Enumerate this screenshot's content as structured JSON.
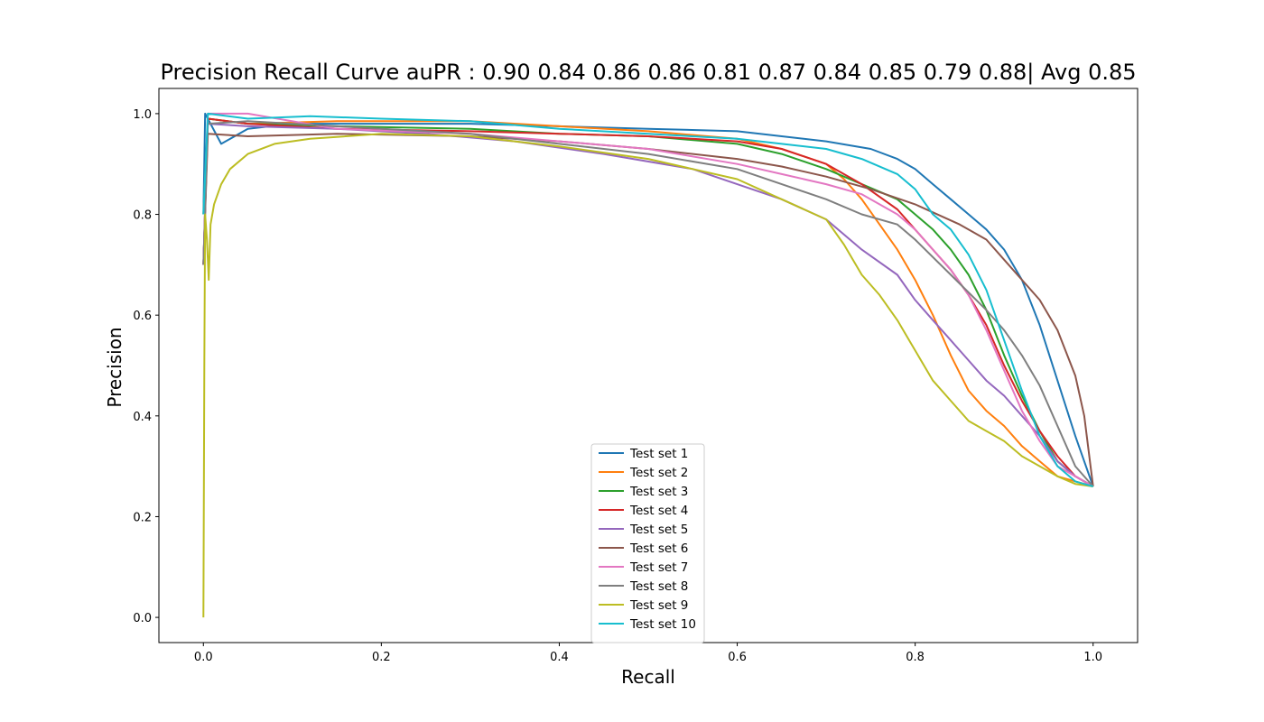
{
  "chart_data": {
    "type": "line",
    "title": "Precision Recall Curve auPR :  0.90 0.84 0.86 0.86 0.81 0.87 0.84 0.85 0.79 0.88| Avg 0.85",
    "xlabel": "Recall",
    "ylabel": "Precision",
    "xlim": [
      -0.05,
      1.05
    ],
    "ylim": [
      -0.05,
      1.05
    ],
    "xticks": [
      "0.0",
      "0.2",
      "0.4",
      "0.6",
      "0.8",
      "1.0"
    ],
    "yticks": [
      "0.0",
      "0.2",
      "0.4",
      "0.6",
      "0.8",
      "1.0"
    ],
    "grid": false,
    "legend_position": "lower center",
    "series": [
      {
        "name": "Test set 1",
        "color": "#1f77b4",
        "x": [
          0,
          0.002,
          0.02,
          0.05,
          0.1,
          0.2,
          0.3,
          0.4,
          0.5,
          0.6,
          0.65,
          0.7,
          0.75,
          0.78,
          0.8,
          0.82,
          0.84,
          0.86,
          0.88,
          0.9,
          0.92,
          0.94,
          0.96,
          0.98,
          1.0
        ],
        "y": [
          0.8,
          1.0,
          0.94,
          0.97,
          0.98,
          0.98,
          0.98,
          0.975,
          0.97,
          0.965,
          0.955,
          0.945,
          0.93,
          0.91,
          0.89,
          0.86,
          0.83,
          0.8,
          0.77,
          0.73,
          0.67,
          0.58,
          0.47,
          0.36,
          0.26
        ]
      },
      {
        "name": "Test set 2",
        "color": "#ff7f0e",
        "x": [
          0,
          0.005,
          0.05,
          0.15,
          0.3,
          0.4,
          0.5,
          0.6,
          0.65,
          0.7,
          0.72,
          0.74,
          0.76,
          0.78,
          0.8,
          0.82,
          0.84,
          0.86,
          0.88,
          0.9,
          0.92,
          0.94,
          0.96,
          0.98,
          1.0
        ],
        "y": [
          0.8,
          0.99,
          0.98,
          0.985,
          0.985,
          0.975,
          0.965,
          0.95,
          0.93,
          0.9,
          0.87,
          0.83,
          0.78,
          0.73,
          0.67,
          0.6,
          0.52,
          0.45,
          0.41,
          0.38,
          0.34,
          0.31,
          0.28,
          0.27,
          0.26
        ]
      },
      {
        "name": "Test set 3",
        "color": "#2ca02c",
        "x": [
          0,
          0.005,
          0.05,
          0.15,
          0.3,
          0.4,
          0.5,
          0.6,
          0.65,
          0.7,
          0.74,
          0.78,
          0.8,
          0.82,
          0.84,
          0.86,
          0.88,
          0.9,
          0.92,
          0.94,
          0.96,
          0.98,
          1.0
        ],
        "y": [
          0.7,
          0.99,
          0.98,
          0.975,
          0.97,
          0.96,
          0.955,
          0.94,
          0.92,
          0.89,
          0.86,
          0.83,
          0.8,
          0.77,
          0.73,
          0.68,
          0.61,
          0.52,
          0.44,
          0.37,
          0.31,
          0.28,
          0.26
        ]
      },
      {
        "name": "Test set 4",
        "color": "#d62728",
        "x": [
          0,
          0.005,
          0.05,
          0.15,
          0.3,
          0.4,
          0.5,
          0.6,
          0.65,
          0.7,
          0.74,
          0.78,
          0.8,
          0.82,
          0.84,
          0.86,
          0.88,
          0.9,
          0.92,
          0.94,
          0.96,
          0.98,
          1.0
        ],
        "y": [
          0.7,
          0.99,
          0.98,
          0.97,
          0.965,
          0.96,
          0.955,
          0.945,
          0.93,
          0.9,
          0.86,
          0.81,
          0.77,
          0.73,
          0.69,
          0.64,
          0.58,
          0.5,
          0.43,
          0.37,
          0.32,
          0.28,
          0.26
        ]
      },
      {
        "name": "Test set 5",
        "color": "#9467bd",
        "x": [
          0,
          0.005,
          0.05,
          0.15,
          0.25,
          0.35,
          0.45,
          0.55,
          0.6,
          0.65,
          0.7,
          0.74,
          0.78,
          0.8,
          0.82,
          0.84,
          0.86,
          0.88,
          0.9,
          0.92,
          0.94,
          0.96,
          0.98,
          1.0
        ],
        "y": [
          0.7,
          0.98,
          0.975,
          0.97,
          0.96,
          0.945,
          0.92,
          0.89,
          0.86,
          0.83,
          0.79,
          0.73,
          0.68,
          0.63,
          0.59,
          0.55,
          0.51,
          0.47,
          0.44,
          0.4,
          0.36,
          0.31,
          0.28,
          0.26
        ]
      },
      {
        "name": "Test set 6",
        "color": "#8c564b",
        "x": [
          0,
          0.005,
          0.05,
          0.15,
          0.3,
          0.4,
          0.5,
          0.6,
          0.65,
          0.7,
          0.75,
          0.8,
          0.85,
          0.88,
          0.9,
          0.92,
          0.94,
          0.96,
          0.98,
          0.99,
          0.995,
          1.0
        ],
        "y": [
          0.7,
          0.96,
          0.955,
          0.96,
          0.955,
          0.945,
          0.93,
          0.91,
          0.895,
          0.875,
          0.85,
          0.82,
          0.78,
          0.75,
          0.71,
          0.67,
          0.63,
          0.57,
          0.48,
          0.4,
          0.33,
          0.26
        ]
      },
      {
        "name": "Test set 7",
        "color": "#e377c2",
        "x": [
          0,
          0.005,
          0.05,
          0.15,
          0.3,
          0.4,
          0.5,
          0.6,
          0.65,
          0.7,
          0.74,
          0.78,
          0.8,
          0.82,
          0.84,
          0.86,
          0.88,
          0.9,
          0.92,
          0.94,
          0.96,
          0.98,
          1.0
        ],
        "y": [
          0.7,
          1.0,
          1.0,
          0.97,
          0.96,
          0.945,
          0.93,
          0.9,
          0.88,
          0.86,
          0.84,
          0.8,
          0.77,
          0.73,
          0.69,
          0.64,
          0.57,
          0.49,
          0.41,
          0.35,
          0.3,
          0.28,
          0.26
        ]
      },
      {
        "name": "Test set 8",
        "color": "#7f7f7f",
        "x": [
          0,
          0.005,
          0.05,
          0.15,
          0.3,
          0.4,
          0.5,
          0.6,
          0.65,
          0.7,
          0.74,
          0.78,
          0.8,
          0.84,
          0.88,
          0.9,
          0.92,
          0.94,
          0.96,
          0.98,
          1.0
        ],
        "y": [
          0.7,
          0.98,
          0.985,
          0.975,
          0.96,
          0.94,
          0.92,
          0.89,
          0.86,
          0.83,
          0.8,
          0.78,
          0.75,
          0.68,
          0.61,
          0.57,
          0.52,
          0.46,
          0.38,
          0.3,
          0.26
        ]
      },
      {
        "name": "Test set 9",
        "color": "#bcbd22",
        "x": [
          0,
          0.001,
          0.002,
          0.004,
          0.006,
          0.008,
          0.012,
          0.02,
          0.03,
          0.05,
          0.08,
          0.12,
          0.2,
          0.3,
          0.4,
          0.5,
          0.6,
          0.65,
          0.7,
          0.72,
          0.74,
          0.76,
          0.78,
          0.8,
          0.82,
          0.84,
          0.86,
          0.88,
          0.9,
          0.92,
          0.94,
          0.96,
          0.98,
          1.0
        ],
        "y": [
          0.0,
          0.5,
          0.8,
          0.75,
          0.67,
          0.78,
          0.82,
          0.86,
          0.89,
          0.92,
          0.94,
          0.95,
          0.96,
          0.955,
          0.935,
          0.91,
          0.87,
          0.83,
          0.79,
          0.74,
          0.68,
          0.64,
          0.59,
          0.53,
          0.47,
          0.43,
          0.39,
          0.37,
          0.35,
          0.32,
          0.3,
          0.28,
          0.265,
          0.26
        ]
      },
      {
        "name": "Test set 10",
        "color": "#17becf",
        "x": [
          0,
          0.005,
          0.05,
          0.12,
          0.2,
          0.3,
          0.4,
          0.5,
          0.6,
          0.65,
          0.7,
          0.74,
          0.78,
          0.8,
          0.82,
          0.84,
          0.86,
          0.88,
          0.9,
          0.92,
          0.94,
          0.96,
          0.98,
          1.0
        ],
        "y": [
          0.8,
          1.0,
          0.99,
          0.995,
          0.99,
          0.985,
          0.97,
          0.96,
          0.95,
          0.94,
          0.93,
          0.91,
          0.88,
          0.85,
          0.8,
          0.77,
          0.72,
          0.65,
          0.55,
          0.45,
          0.36,
          0.3,
          0.27,
          0.26
        ]
      }
    ]
  }
}
